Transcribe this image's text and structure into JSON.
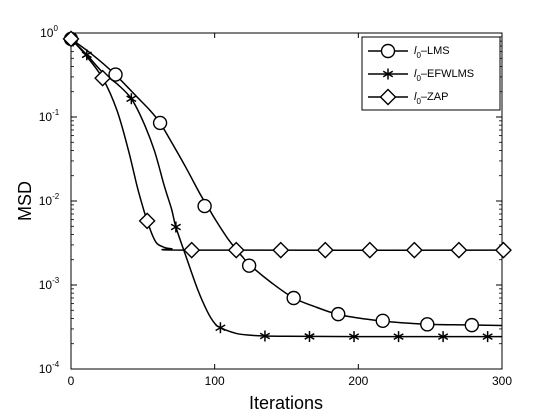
{
  "chart_data": {
    "type": "line",
    "xlabel": "Iterations",
    "ylabel": "MSD",
    "xlim": [
      0,
      300
    ],
    "ylim": [
      0.0001,
      1
    ],
    "yscale": "log",
    "x_ticks": [
      "0",
      "100",
      "200",
      "300"
    ],
    "y_ticks": [
      {
        "base": "10",
        "exp": "0"
      },
      {
        "base": "10",
        "exp": "-1"
      },
      {
        "base": "10",
        "exp": "-2"
      },
      {
        "base": "10",
        "exp": "-3"
      },
      {
        "base": "10",
        "exp": "-4"
      }
    ],
    "grid": false,
    "legend_position": "top-right",
    "series": [
      {
        "name_main": "l",
        "name_sub": "0",
        "name_rest": "–LMS",
        "marker": "circle",
        "color": "#000000",
        "curve": [
          [
            0,
            0.85
          ],
          [
            15,
            0.55
          ],
          [
            30,
            0.33
          ],
          [
            45,
            0.18
          ],
          [
            55,
            0.12
          ],
          [
            62,
            0.085
          ],
          [
            70,
            0.05
          ],
          [
            80,
            0.025
          ],
          [
            90,
            0.012
          ],
          [
            95,
            0.0087
          ],
          [
            100,
            0.0062
          ],
          [
            110,
            0.0034
          ],
          [
            120,
            0.0021
          ],
          [
            125,
            0.0017
          ],
          [
            140,
            0.00105
          ],
          [
            155,
            0.0007
          ],
          [
            170,
            0.00055
          ],
          [
            185,
            0.00045
          ],
          [
            200,
            0.000405
          ],
          [
            215,
            0.000375
          ],
          [
            230,
            0.000355
          ],
          [
            250,
            0.00034
          ],
          [
            275,
            0.000335
          ],
          [
            300,
            0.00033
          ]
        ],
        "markers": [
          [
            0,
            0.85
          ],
          [
            31,
            0.32
          ],
          [
            62,
            0.085
          ],
          [
            93,
            0.0087
          ],
          [
            124,
            0.0017
          ],
          [
            155,
            0.0007
          ],
          [
            186,
            0.00045
          ],
          [
            217,
            0.000375
          ],
          [
            248,
            0.00034
          ],
          [
            279,
            0.000333
          ]
        ]
      },
      {
        "name_main": "l",
        "name_sub": "0",
        "name_rest": "–EFWLMS",
        "marker": "asterisk",
        "color": "#000000",
        "curve": [
          [
            0,
            0.85
          ],
          [
            11,
            0.55
          ],
          [
            22,
            0.34
          ],
          [
            33,
            0.24
          ],
          [
            42,
            0.165
          ],
          [
            50,
            0.09
          ],
          [
            58,
            0.04
          ],
          [
            65,
            0.015
          ],
          [
            70,
            0.008
          ],
          [
            73,
            0.0049
          ],
          [
            80,
            0.0022
          ],
          [
            88,
            0.0009
          ],
          [
            95,
            0.00048
          ],
          [
            100,
            0.00035
          ],
          [
            104,
            0.00031
          ],
          [
            115,
            0.000265
          ],
          [
            125,
            0.000252
          ],
          [
            135,
            0.000247
          ],
          [
            150,
            0.000245
          ],
          [
            200,
            0.000243
          ],
          [
            250,
            0.000243
          ],
          [
            300,
            0.000243
          ]
        ],
        "markers": [
          [
            0,
            0.85
          ],
          [
            11,
            0.55
          ],
          [
            42,
            0.165
          ],
          [
            73,
            0.0049
          ],
          [
            104,
            0.00031
          ],
          [
            135,
            0.000247
          ],
          [
            166,
            0.000244
          ],
          [
            197,
            0.000243
          ],
          [
            228,
            0.000243
          ],
          [
            259,
            0.000243
          ],
          [
            290,
            0.000243
          ]
        ]
      },
      {
        "name_main": "l",
        "name_sub": "0",
        "name_rest": "–ZAP",
        "marker": "diamond",
        "color": "#000000",
        "curve": [
          [
            0,
            0.85
          ],
          [
            10,
            0.55
          ],
          [
            22,
            0.29
          ],
          [
            32,
            0.12
          ],
          [
            40,
            0.04
          ],
          [
            46,
            0.015
          ],
          [
            50,
            0.0085
          ],
          [
            53,
            0.0058
          ],
          [
            57,
            0.0038
          ],
          [
            60,
            0.0031
          ],
          [
            65,
            0.0028
          ],
          [
            70,
            0.0027
          ],
          [
            84,
            0.0026
          ],
          [
            300,
            0.0026
          ]
        ],
        "markers": [
          [
            0,
            0.85
          ],
          [
            22,
            0.29
          ],
          [
            53,
            0.0058
          ],
          [
            84,
            0.0026
          ],
          [
            115,
            0.0026
          ],
          [
            146,
            0.0026
          ],
          [
            177,
            0.0026
          ],
          [
            208,
            0.0026
          ],
          [
            239,
            0.0026
          ],
          [
            270,
            0.0026
          ],
          [
            301,
            0.0026
          ]
        ]
      }
    ]
  }
}
